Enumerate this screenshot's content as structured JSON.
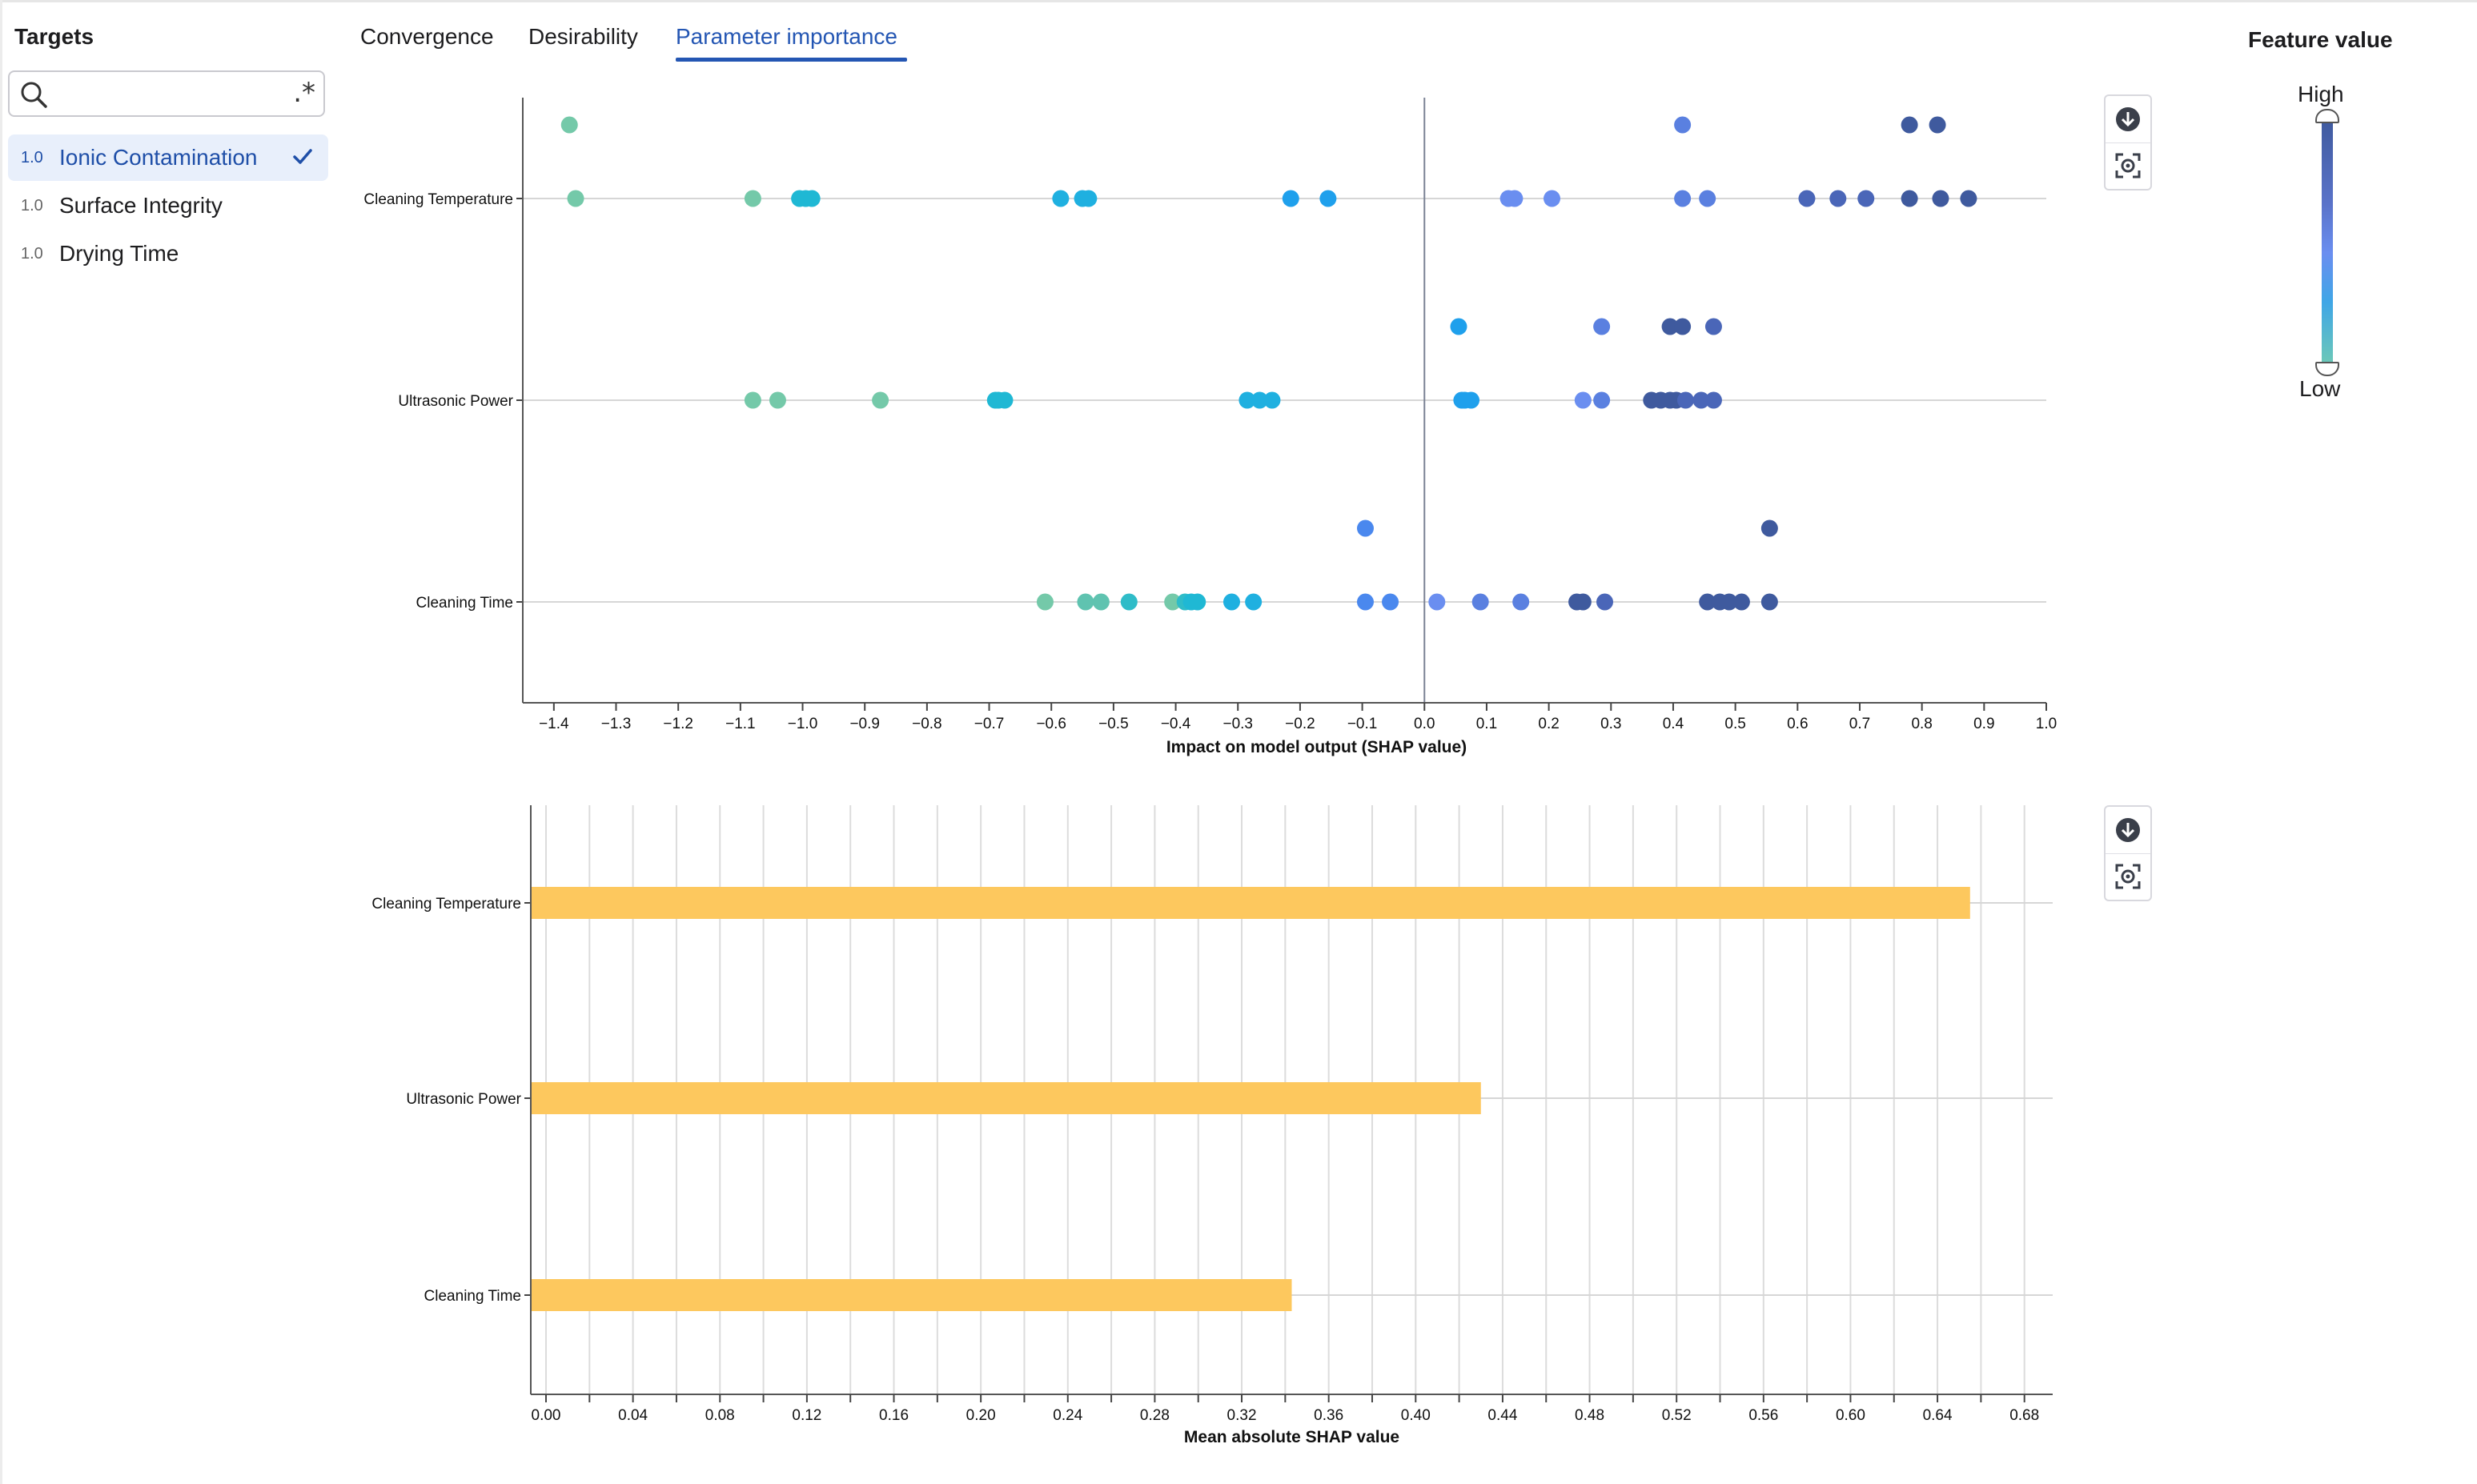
{
  "sidebar": {
    "title": "Targets",
    "search_placeholder": "",
    "regex_symbol": ".*",
    "targets": [
      {
        "weight": "1.0",
        "name": "Ionic Contamination",
        "selected": true
      },
      {
        "weight": "1.0",
        "name": "Surface Integrity",
        "selected": false
      },
      {
        "weight": "1.0",
        "name": "Drying Time",
        "selected": false
      }
    ]
  },
  "tabs": [
    {
      "label": "Convergence",
      "active": false
    },
    {
      "label": "Desirability",
      "active": false
    },
    {
      "label": "Parameter importance",
      "active": true
    }
  ],
  "legend": {
    "title": "Feature value",
    "high": "High",
    "low": "Low",
    "colors": {
      "high": "#3f5a9e",
      "mid": "#6a8ef0",
      "low_mid": "#1fb4dc",
      "low": "#74c9a9"
    }
  },
  "toolbar": {
    "icons": [
      "download-icon",
      "fit-to-screen-icon"
    ]
  },
  "chart_data": [
    {
      "type": "scatter",
      "subtype": "beeswarm",
      "xlabel": "Impact on model output (SHAP value)",
      "xlim": [
        -1.45,
        1.0
      ],
      "x_ticks": [
        "-1.4",
        "-1.3",
        "-1.2",
        "-1.1",
        "-1.0",
        "-0.9",
        "-0.8",
        "-0.7",
        "-0.6",
        "-0.5",
        "-0.4",
        "-0.3",
        "-0.2",
        "-0.1",
        "0.0",
        "0.1",
        "0.2",
        "0.3",
        "0.4",
        "0.5",
        "0.6",
        "0.7",
        "0.8",
        "0.9",
        "1.0"
      ],
      "x_tick_values": [
        -1.4,
        -1.3,
        -1.2,
        -1.1,
        -1.0,
        -0.9,
        -0.8,
        -0.7,
        -0.6,
        -0.5,
        -0.4,
        -0.3,
        -0.2,
        -0.1,
        0.0,
        0.1,
        0.2,
        0.3,
        0.4,
        0.5,
        0.6,
        0.7,
        0.8,
        0.9,
        1.0
      ],
      "categories": [
        "Cleaning Temperature",
        "Ultrasonic Power",
        "Cleaning Time"
      ],
      "points": [
        {
          "feature": 0,
          "x": -1.375,
          "row": 1,
          "color": "#74c9a9"
        },
        {
          "feature": 0,
          "x": 0.415,
          "row": 1,
          "color": "#5a80e0"
        },
        {
          "feature": 0,
          "x": 0.78,
          "row": 1,
          "color": "#3f5a9e"
        },
        {
          "feature": 0,
          "x": 0.825,
          "row": 1,
          "color": "#3f5a9e"
        },
        {
          "feature": 0,
          "x": -1.365,
          "row": 0,
          "color": "#74c9a9"
        },
        {
          "feature": 0,
          "x": -1.08,
          "row": 0,
          "color": "#74c9a9"
        },
        {
          "feature": 0,
          "x": -1.005,
          "row": 0,
          "color": "#1fb8d4"
        },
        {
          "feature": 0,
          "x": -0.995,
          "row": 0,
          "color": "#1fb8d4"
        },
        {
          "feature": 0,
          "x": -0.985,
          "row": 0,
          "color": "#1fb8d4"
        },
        {
          "feature": 0,
          "x": -0.585,
          "row": 0,
          "color": "#1fb0e0"
        },
        {
          "feature": 0,
          "x": -0.55,
          "row": 0,
          "color": "#1fb0e0"
        },
        {
          "feature": 0,
          "x": -0.54,
          "row": 0,
          "color": "#1fb0e0"
        },
        {
          "feature": 0,
          "x": -0.215,
          "row": 0,
          "color": "#1fa0ec"
        },
        {
          "feature": 0,
          "x": -0.155,
          "row": 0,
          "color": "#1fa0ec"
        },
        {
          "feature": 0,
          "x": 0.135,
          "row": 0,
          "color": "#6a8ef0"
        },
        {
          "feature": 0,
          "x": 0.145,
          "row": 0,
          "color": "#6a8ef0"
        },
        {
          "feature": 0,
          "x": 0.205,
          "row": 0,
          "color": "#6a8ef0"
        },
        {
          "feature": 0,
          "x": 0.415,
          "row": 0,
          "color": "#5a80e0"
        },
        {
          "feature": 0,
          "x": 0.455,
          "row": 0,
          "color": "#5a80e0"
        },
        {
          "feature": 0,
          "x": 0.615,
          "row": 0,
          "color": "#4a66b8"
        },
        {
          "feature": 0,
          "x": 0.665,
          "row": 0,
          "color": "#4a66b8"
        },
        {
          "feature": 0,
          "x": 0.71,
          "row": 0,
          "color": "#4a66b8"
        },
        {
          "feature": 0,
          "x": 0.78,
          "row": 0,
          "color": "#3f5a9e"
        },
        {
          "feature": 0,
          "x": 0.83,
          "row": 0,
          "color": "#3f5a9e"
        },
        {
          "feature": 0,
          "x": 0.875,
          "row": 0,
          "color": "#3f5a9e"
        },
        {
          "feature": 1,
          "x": 0.055,
          "row": 1,
          "color": "#1fa0ec"
        },
        {
          "feature": 1,
          "x": 0.285,
          "row": 1,
          "color": "#5a80e0"
        },
        {
          "feature": 1,
          "x": 0.395,
          "row": 1,
          "color": "#3f5a9e"
        },
        {
          "feature": 1,
          "x": 0.415,
          "row": 1,
          "color": "#3f5a9e"
        },
        {
          "feature": 1,
          "x": 0.465,
          "row": 1,
          "color": "#4a66b8"
        },
        {
          "feature": 1,
          "x": -1.08,
          "row": 0,
          "color": "#74c9a9"
        },
        {
          "feature": 1,
          "x": -1.04,
          "row": 0,
          "color": "#74c9a9"
        },
        {
          "feature": 1,
          "x": -0.875,
          "row": 0,
          "color": "#74c9a9"
        },
        {
          "feature": 1,
          "x": -0.69,
          "row": 0,
          "color": "#1fb8d4"
        },
        {
          "feature": 1,
          "x": -0.685,
          "row": 0,
          "color": "#1fb8d4"
        },
        {
          "feature": 1,
          "x": -0.675,
          "row": 0,
          "color": "#1fb8d4"
        },
        {
          "feature": 1,
          "x": -0.285,
          "row": 0,
          "color": "#1fb0e0"
        },
        {
          "feature": 1,
          "x": -0.265,
          "row": 0,
          "color": "#1fb0e0"
        },
        {
          "feature": 1,
          "x": -0.245,
          "row": 0,
          "color": "#1fb0e0"
        },
        {
          "feature": 1,
          "x": 0.06,
          "row": 0,
          "color": "#1fa0ec"
        },
        {
          "feature": 1,
          "x": 0.065,
          "row": 0,
          "color": "#1fa0ec"
        },
        {
          "feature": 1,
          "x": 0.075,
          "row": 0,
          "color": "#1fa0ec"
        },
        {
          "feature": 1,
          "x": 0.255,
          "row": 0,
          "color": "#6a8ef0"
        },
        {
          "feature": 1,
          "x": 0.285,
          "row": 0,
          "color": "#5a80e0"
        },
        {
          "feature": 1,
          "x": 0.365,
          "row": 0,
          "color": "#3f5a9e"
        },
        {
          "feature": 1,
          "x": 0.38,
          "row": 0,
          "color": "#3f5a9e"
        },
        {
          "feature": 1,
          "x": 0.395,
          "row": 0,
          "color": "#3f5a9e"
        },
        {
          "feature": 1,
          "x": 0.405,
          "row": 0,
          "color": "#3f5a9e"
        },
        {
          "feature": 1,
          "x": 0.42,
          "row": 0,
          "color": "#4a66b8"
        },
        {
          "feature": 1,
          "x": 0.445,
          "row": 0,
          "color": "#4a66b8"
        },
        {
          "feature": 1,
          "x": 0.465,
          "row": 0,
          "color": "#4a66b8"
        },
        {
          "feature": 2,
          "x": -0.095,
          "row": 1,
          "color": "#4a88ee"
        },
        {
          "feature": 2,
          "x": 0.555,
          "row": 1,
          "color": "#3f5a9e"
        },
        {
          "feature": 2,
          "x": -0.61,
          "row": 0,
          "color": "#74c9a9"
        },
        {
          "feature": 2,
          "x": -0.545,
          "row": 0,
          "color": "#5fc3b0"
        },
        {
          "feature": 2,
          "x": -0.52,
          "row": 0,
          "color": "#5fc3b0"
        },
        {
          "feature": 2,
          "x": -0.475,
          "row": 0,
          "color": "#2fbcc8"
        },
        {
          "feature": 2,
          "x": -0.405,
          "row": 0,
          "color": "#74c9a9"
        },
        {
          "feature": 2,
          "x": -0.385,
          "row": 0,
          "color": "#2fbcc8"
        },
        {
          "feature": 2,
          "x": -0.375,
          "row": 0,
          "color": "#1fb8d4"
        },
        {
          "feature": 2,
          "x": -0.365,
          "row": 0,
          "color": "#1fb8d4"
        },
        {
          "feature": 2,
          "x": -0.31,
          "row": 0,
          "color": "#1fb0e0"
        },
        {
          "feature": 2,
          "x": -0.275,
          "row": 0,
          "color": "#1fb0e0"
        },
        {
          "feature": 2,
          "x": -0.095,
          "row": 0,
          "color": "#4a88ee"
        },
        {
          "feature": 2,
          "x": -0.055,
          "row": 0,
          "color": "#4a88ee"
        },
        {
          "feature": 2,
          "x": 0.02,
          "row": 0,
          "color": "#6a8ef0"
        },
        {
          "feature": 2,
          "x": 0.09,
          "row": 0,
          "color": "#5a80e0"
        },
        {
          "feature": 2,
          "x": 0.155,
          "row": 0,
          "color": "#5a80e0"
        },
        {
          "feature": 2,
          "x": 0.245,
          "row": 0,
          "color": "#3f5a9e"
        },
        {
          "feature": 2,
          "x": 0.255,
          "row": 0,
          "color": "#3f5a9e"
        },
        {
          "feature": 2,
          "x": 0.29,
          "row": 0,
          "color": "#4a66b8"
        },
        {
          "feature": 2,
          "x": 0.455,
          "row": 0,
          "color": "#3f5a9e"
        },
        {
          "feature": 2,
          "x": 0.475,
          "row": 0,
          "color": "#3f5a9e"
        },
        {
          "feature": 2,
          "x": 0.49,
          "row": 0,
          "color": "#3f5a9e"
        },
        {
          "feature": 2,
          "x": 0.51,
          "row": 0,
          "color": "#3f5a9e"
        },
        {
          "feature": 2,
          "x": 0.555,
          "row": 0,
          "color": "#3f5a9e"
        }
      ]
    },
    {
      "type": "bar",
      "orientation": "horizontal",
      "xlabel": "Mean absolute SHAP value",
      "xlim": [
        -0.007,
        0.693
      ],
      "x_ticks": [
        "0.00",
        "0.04",
        "0.08",
        "0.12",
        "0.16",
        "0.20",
        "0.24",
        "0.28",
        "0.32",
        "0.36",
        "0.40",
        "0.44",
        "0.48",
        "0.52",
        "0.56",
        "0.60",
        "0.64",
        "0.68"
      ],
      "x_tick_values": [
        0,
        0.04,
        0.08,
        0.12,
        0.16,
        0.2,
        0.24,
        0.28,
        0.32,
        0.36,
        0.4,
        0.44,
        0.48,
        0.52,
        0.56,
        0.6,
        0.64,
        0.68
      ],
      "categories": [
        "Cleaning Temperature",
        "Ultrasonic Power",
        "Cleaning Time"
      ],
      "values": [
        0.655,
        0.43,
        0.343
      ],
      "bar_color": "#fdc85e",
      "grid": true
    }
  ]
}
